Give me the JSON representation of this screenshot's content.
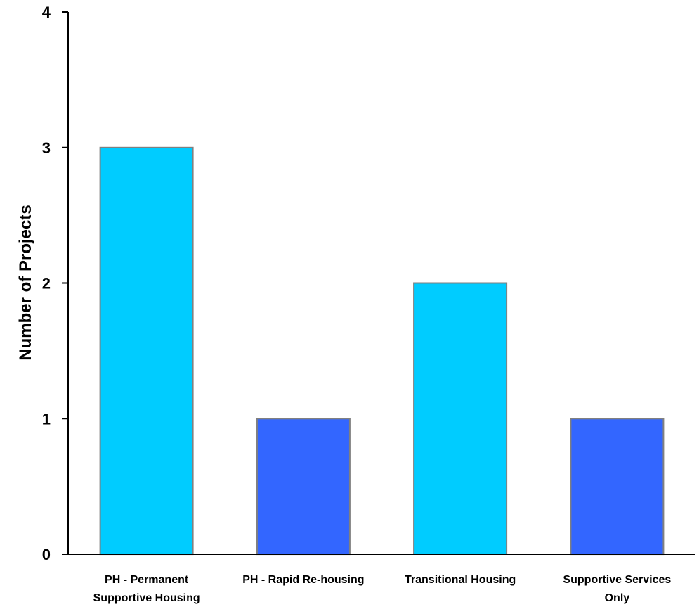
{
  "chart_data": {
    "type": "bar",
    "categories": [
      [
        "PH - Permanent",
        "Supportive Housing"
      ],
      [
        "PH - Rapid Re-housing"
      ],
      [
        "Transitional Housing"
      ],
      [
        "Supportive Services",
        "Only"
      ]
    ],
    "values": [
      3,
      1,
      2,
      1
    ],
    "bar_colors": [
      "#00CCFF",
      "#3366FF",
      "#00CCFF",
      "#3366FF"
    ],
    "bar_stroke": "#808080",
    "title": "",
    "xlabel": "",
    "ylabel": "Number of Projects",
    "ylim": [
      0,
      4
    ],
    "yticks": [
      0,
      1,
      2,
      3,
      4
    ],
    "grid": false,
    "legend": "none"
  }
}
